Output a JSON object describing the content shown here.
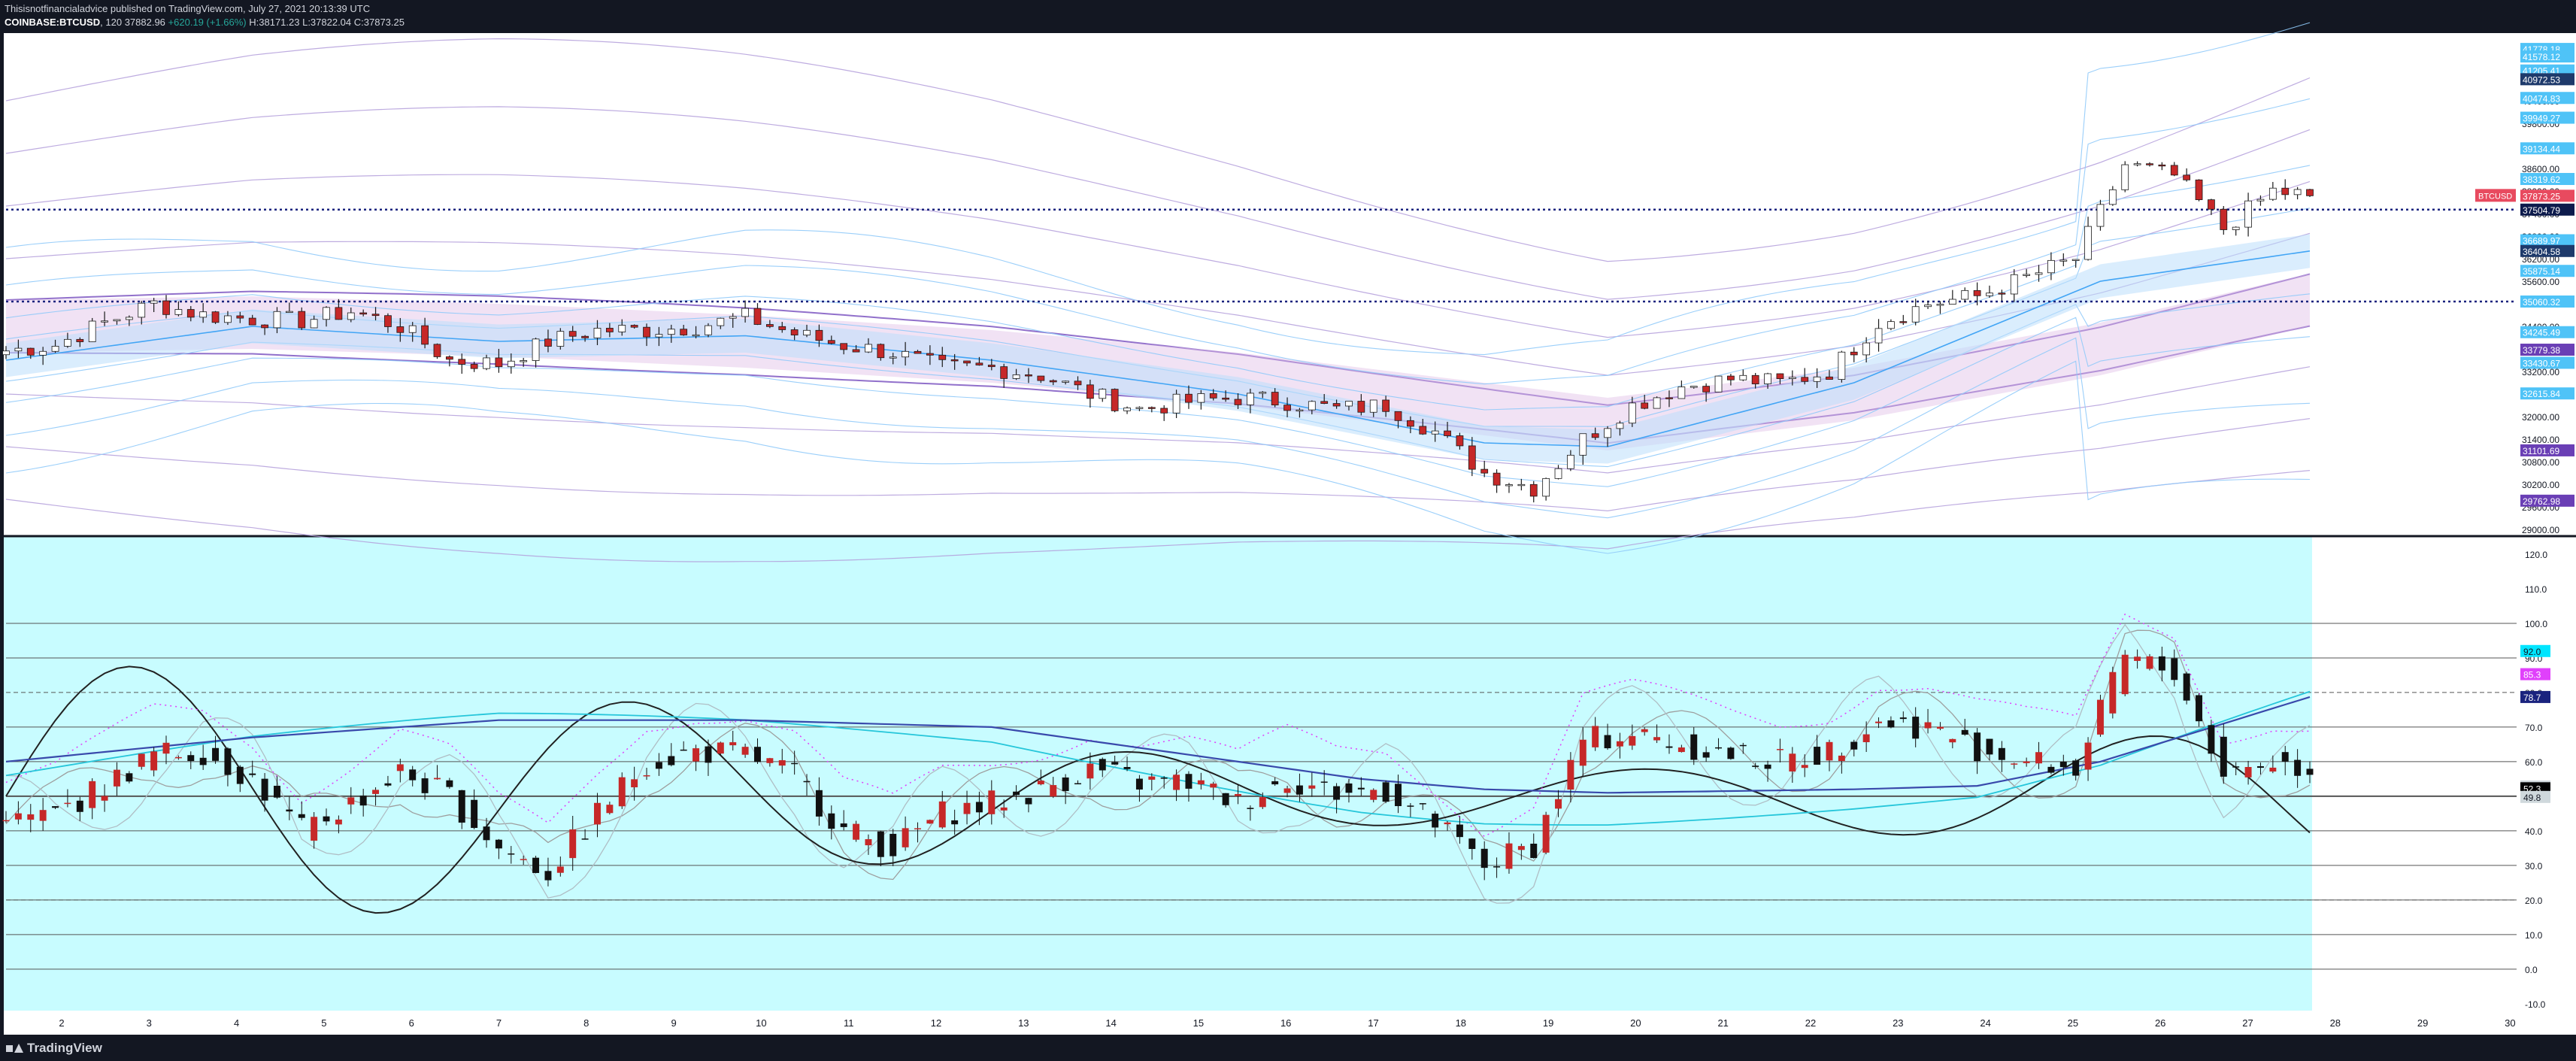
{
  "header": {
    "publisher_line": "Thisisnotfinancialadvice published on TradingView.com, July 27, 2021 20:13:39 UTC",
    "symbol": "COINBASE:BTCUSD",
    "interval": "120",
    "last": "37882.96",
    "change": "+620.19 (+1.66%)",
    "ohlc": "H:38171.23 L:37822.04 C:37873.25"
  },
  "footer": {
    "brand": "TradingView"
  },
  "colors": {
    "background_top": "#ffffff",
    "background_bottom": "#c8fcff",
    "frame": "#131722",
    "candle_up": "#1a1a1a",
    "candle_down": "#c62828",
    "band_blue": "#6fb7e6",
    "band_purple": "#9a6cc9",
    "hline_dotted": "#1a237e"
  },
  "chart_data": [
    {
      "type": "candlestick",
      "symbol_label": "BTCUSD",
      "price_axis_ticks": [
        41000,
        40400,
        39800,
        39200,
        38600,
        38000,
        37400,
        36800,
        36200,
        35600,
        35000,
        34400,
        33800,
        33200,
        32600,
        32000,
        31400,
        30800,
        30200,
        29600,
        29000
      ],
      "price_axis_labels": [
        "41000.00",
        "40400.00",
        "39800.00",
        "39200.00",
        "38600.00",
        "38000.00",
        "37400.00",
        "36800.00",
        "36200.00",
        "35600.00",
        "35000.00",
        "34400.00",
        "33800.00",
        "33200.00",
        "32600.00",
        "32000.00",
        "31400.00",
        "30800.00",
        "30200.00",
        "29600.00",
        "29000.00"
      ],
      "ylim": [
        28840,
        42200
      ],
      "axis_badges": [
        {
          "value": 41778.18,
          "label": "41778.18",
          "color": "#4fc3f7"
        },
        {
          "value": 41578.12,
          "label": "41578.12",
          "color": "#4fc3f7"
        },
        {
          "value": 41205.41,
          "label": "41205.41",
          "color": "#4fc3f7"
        },
        {
          "value": 40972.53,
          "label": "40972.53",
          "color": "#1e3a6b"
        },
        {
          "value": 40474.83,
          "label": "40474.83",
          "color": "#4fc3f7"
        },
        {
          "value": 39949.27,
          "label": "39949.27",
          "color": "#4fc3f7"
        },
        {
          "value": 39134.44,
          "label": "39134.44",
          "color": "#4fc3f7"
        },
        {
          "value": 38319.62,
          "label": "38319.62",
          "color": "#4fc3f7"
        },
        {
          "value": 37873.25,
          "label": "37873.25",
          "color": "#e84a5f"
        },
        {
          "value": 37504.79,
          "label": "37504.79",
          "color": "#0d1b4c"
        },
        {
          "value": 36689.97,
          "label": "36689.97",
          "color": "#4fc3f7"
        },
        {
          "value": 36404.58,
          "label": "36404.58",
          "color": "#1e3a6b"
        },
        {
          "value": 35875.14,
          "label": "35875.14",
          "color": "#4fc3f7"
        },
        {
          "value": 35060.32,
          "label": "35060.32",
          "color": "#4fc3f7"
        },
        {
          "value": 34245.49,
          "label": "34245.49",
          "color": "#4fc3f7"
        },
        {
          "value": 33779.38,
          "label": "33779.38",
          "color": "#6a3fb5"
        },
        {
          "value": 33430.67,
          "label": "33430.67",
          "color": "#4fc3f7"
        },
        {
          "value": 32615.84,
          "label": "32615.84",
          "color": "#4fc3f7"
        },
        {
          "value": 31101.69,
          "label": "31101.69",
          "color": "#6a3fb5"
        },
        {
          "value": 29762.98,
          "label": "29762.98",
          "color": "#6a3fb5"
        }
      ],
      "horizontal_lines": [
        37504.79,
        35060.32
      ],
      "trend_points": [
        [
          0,
          33750
        ],
        [
          4,
          33900
        ],
        [
          8,
          34500
        ],
        [
          12,
          35000
        ],
        [
          16,
          34700
        ],
        [
          20,
          34600
        ],
        [
          24,
          34550
        ],
        [
          28,
          34800
        ],
        [
          32,
          34400
        ],
        [
          36,
          33500
        ],
        [
          40,
          33400
        ],
        [
          44,
          34000
        ],
        [
          48,
          34300
        ],
        [
          52,
          34300
        ],
        [
          56,
          34400
        ],
        [
          60,
          34650
        ],
        [
          64,
          34200
        ],
        [
          68,
          33900
        ],
        [
          72,
          33700
        ],
        [
          76,
          33300
        ],
        [
          80,
          33300
        ],
        [
          84,
          33100
        ],
        [
          88,
          32600
        ],
        [
          92,
          32200
        ],
        [
          96,
          32400
        ],
        [
          100,
          32500
        ],
        [
          104,
          32400
        ],
        [
          108,
          32200
        ],
        [
          112,
          32300
        ],
        [
          116,
          31600
        ],
        [
          120,
          30500
        ],
        [
          124,
          30100
        ],
        [
          128,
          31400
        ],
        [
          132,
          32300
        ],
        [
          136,
          32800
        ],
        [
          140,
          33000
        ],
        [
          144,
          32900
        ],
        [
          148,
          33200
        ],
        [
          152,
          34500
        ],
        [
          156,
          35000
        ],
        [
          160,
          35200
        ],
        [
          164,
          35700
        ],
        [
          168,
          36200
        ],
        [
          172,
          38700
        ],
        [
          176,
          38400
        ],
        [
          180,
          37000
        ],
        [
          184,
          38000
        ],
        [
          187,
          37873
        ]
      ],
      "ema_points": [
        [
          0,
          33500
        ],
        [
          20,
          34400
        ],
        [
          40,
          34000
        ],
        [
          60,
          34150
        ],
        [
          80,
          33500
        ],
        [
          100,
          32600
        ],
        [
          120,
          31300
        ],
        [
          130,
          31200
        ],
        [
          150,
          32900
        ],
        [
          170,
          35600
        ],
        [
          187,
          36404
        ]
      ],
      "slow_ma_points": [
        [
          0,
          34400
        ],
        [
          20,
          34500
        ],
        [
          40,
          34300
        ],
        [
          60,
          34000
        ],
        [
          80,
          33600
        ],
        [
          100,
          33000
        ],
        [
          120,
          32200
        ],
        [
          130,
          31800
        ],
        [
          150,
          32600
        ],
        [
          170,
          33800
        ],
        [
          187,
          35100
        ]
      ]
    },
    {
      "type": "oscillator",
      "axis_ticks": [
        120,
        110,
        100,
        90,
        80,
        70,
        60,
        50,
        40,
        30,
        20,
        10,
        0,
        -10
      ],
      "axis_labels": [
        "120.0",
        "110.0",
        "100.0",
        "90.0",
        "80.0",
        "70.0",
        "60.0",
        "50.0",
        "40.0",
        "30.0",
        "20.0",
        "10.0",
        "0.0",
        "-10.0"
      ],
      "ylim": [
        -12,
        125
      ],
      "levels": [
        100,
        90,
        70,
        60,
        50,
        40,
        30,
        20,
        10,
        0
      ],
      "dashed_level": 80,
      "axis_badges": [
        {
          "value": 92.0,
          "label": "92.0",
          "color": "#00e5ff"
        },
        {
          "value": 85.3,
          "label": "85.3",
          "color": "#e040fb"
        },
        {
          "value": 78.7,
          "label": "78.7",
          "color": "#1a237e"
        },
        {
          "value": 52.8,
          "label": "52.8",
          "color": "#cfd8dc"
        },
        {
          "value": 52.3,
          "label": "52.3",
          "color": "#000000"
        },
        {
          "value": 49.8,
          "label": "49.8",
          "color": "#cfd8dc"
        }
      ],
      "osc_points": [
        [
          0,
          42
        ],
        [
          4,
          45
        ],
        [
          8,
          53
        ],
        [
          12,
          62
        ],
        [
          16,
          63
        ],
        [
          20,
          55
        ],
        [
          24,
          40
        ],
        [
          28,
          48
        ],
        [
          32,
          57
        ],
        [
          36,
          50
        ],
        [
          40,
          35
        ],
        [
          44,
          28
        ],
        [
          48,
          45
        ],
        [
          52,
          60
        ],
        [
          56,
          63
        ],
        [
          60,
          62
        ],
        [
          64,
          56
        ],
        [
          68,
          40
        ],
        [
          72,
          35
        ],
        [
          76,
          45
        ],
        [
          80,
          48
        ],
        [
          84,
          52
        ],
        [
          88,
          58
        ],
        [
          92,
          54
        ],
        [
          96,
          54
        ],
        [
          100,
          48
        ],
        [
          104,
          55
        ],
        [
          108,
          51
        ],
        [
          112,
          52
        ],
        [
          116,
          42
        ],
        [
          120,
          30
        ],
        [
          124,
          36
        ],
        [
          128,
          66
        ],
        [
          132,
          68
        ],
        [
          136,
          65
        ],
        [
          140,
          62
        ],
        [
          144,
          60
        ],
        [
          148,
          63
        ],
        [
          152,
          72
        ],
        [
          156,
          70
        ],
        [
          160,
          64
        ],
        [
          164,
          60
        ],
        [
          168,
          58
        ],
        [
          172,
          90
        ],
        [
          176,
          86
        ],
        [
          180,
          57
        ],
        [
          184,
          60
        ],
        [
          187,
          58
        ]
      ],
      "lsma_points": [
        [
          0,
          60
        ],
        [
          20,
          67
        ],
        [
          40,
          72
        ],
        [
          60,
          72
        ],
        [
          80,
          70
        ],
        [
          100,
          60
        ],
        [
          110,
          55
        ],
        [
          120,
          52
        ],
        [
          130,
          51
        ],
        [
          150,
          52
        ],
        [
          160,
          53
        ],
        [
          170,
          60
        ],
        [
          187,
          78.7
        ]
      ]
    }
  ],
  "time_axis": {
    "labels": [
      "2",
      "3",
      "4",
      "5",
      "6",
      "7",
      "8",
      "9",
      "10",
      "11",
      "12",
      "13",
      "14",
      "15",
      "16",
      "17",
      "18",
      "19",
      "20",
      "21",
      "22",
      "23",
      "24",
      "25",
      "26",
      "27",
      "28",
      "29",
      "30"
    ],
    "first_label_x": 82,
    "spacing": 116.3
  }
}
